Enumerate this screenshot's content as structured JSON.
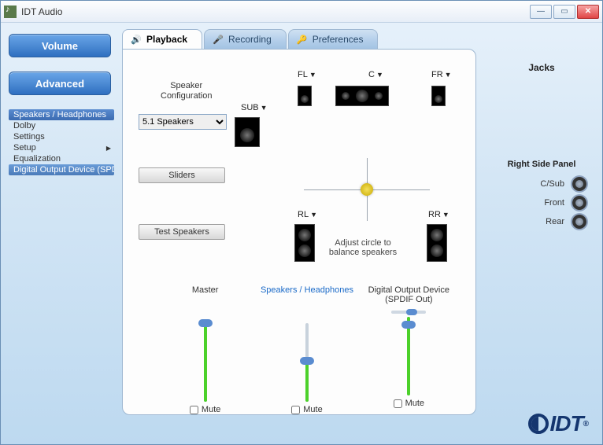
{
  "window": {
    "title": "IDT Audio"
  },
  "sidebar": {
    "volume_btn": "Volume",
    "advanced_btn": "Advanced",
    "items": [
      {
        "label": "Speakers / Headphones",
        "selected": true
      },
      {
        "label": "Dolby"
      },
      {
        "label": "Settings"
      },
      {
        "label": "Setup",
        "submenu": true
      },
      {
        "label": "Equalization"
      },
      {
        "label": "Digital Output Device (SPDIF Out)",
        "selected2": true
      }
    ]
  },
  "tabs": {
    "playback": "Playback",
    "recording": "Recording",
    "preferences": "Preferences"
  },
  "config": {
    "label_l1": "Speaker",
    "label_l2": "Configuration",
    "options": [
      "5.1 Speakers"
    ],
    "selected": "5.1 Speakers"
  },
  "buttons": {
    "sliders": "Sliders",
    "test": "Test Speakers"
  },
  "speakers": {
    "sub": "SUB",
    "fl": "FL",
    "c": "C",
    "fr": "FR",
    "rl": "RL",
    "rr": "RR",
    "balance_l1": "Adjust circle to",
    "balance_l2": "balance speakers"
  },
  "sliders": [
    {
      "name": "Master",
      "link": false,
      "mini": false,
      "fill_pct": 100,
      "thumb_pct": 100,
      "mute": "Mute"
    },
    {
      "name": "Speakers / Headphones",
      "link": true,
      "mini": false,
      "fill_pct": 52,
      "thumb_pct": 52,
      "mute": "Mute"
    },
    {
      "name": "Digital Output Device (SPDIF Out)",
      "link": false,
      "mini": true,
      "mini_thumb_pct": 58,
      "fill_pct": 100,
      "thumb_pct": 90,
      "mute": "Mute"
    }
  ],
  "jacks": {
    "title": "Jacks",
    "panel_header": "Right Side Panel",
    "rows": [
      "C/Sub",
      "Front",
      "Rear"
    ]
  },
  "logo": "IDT"
}
